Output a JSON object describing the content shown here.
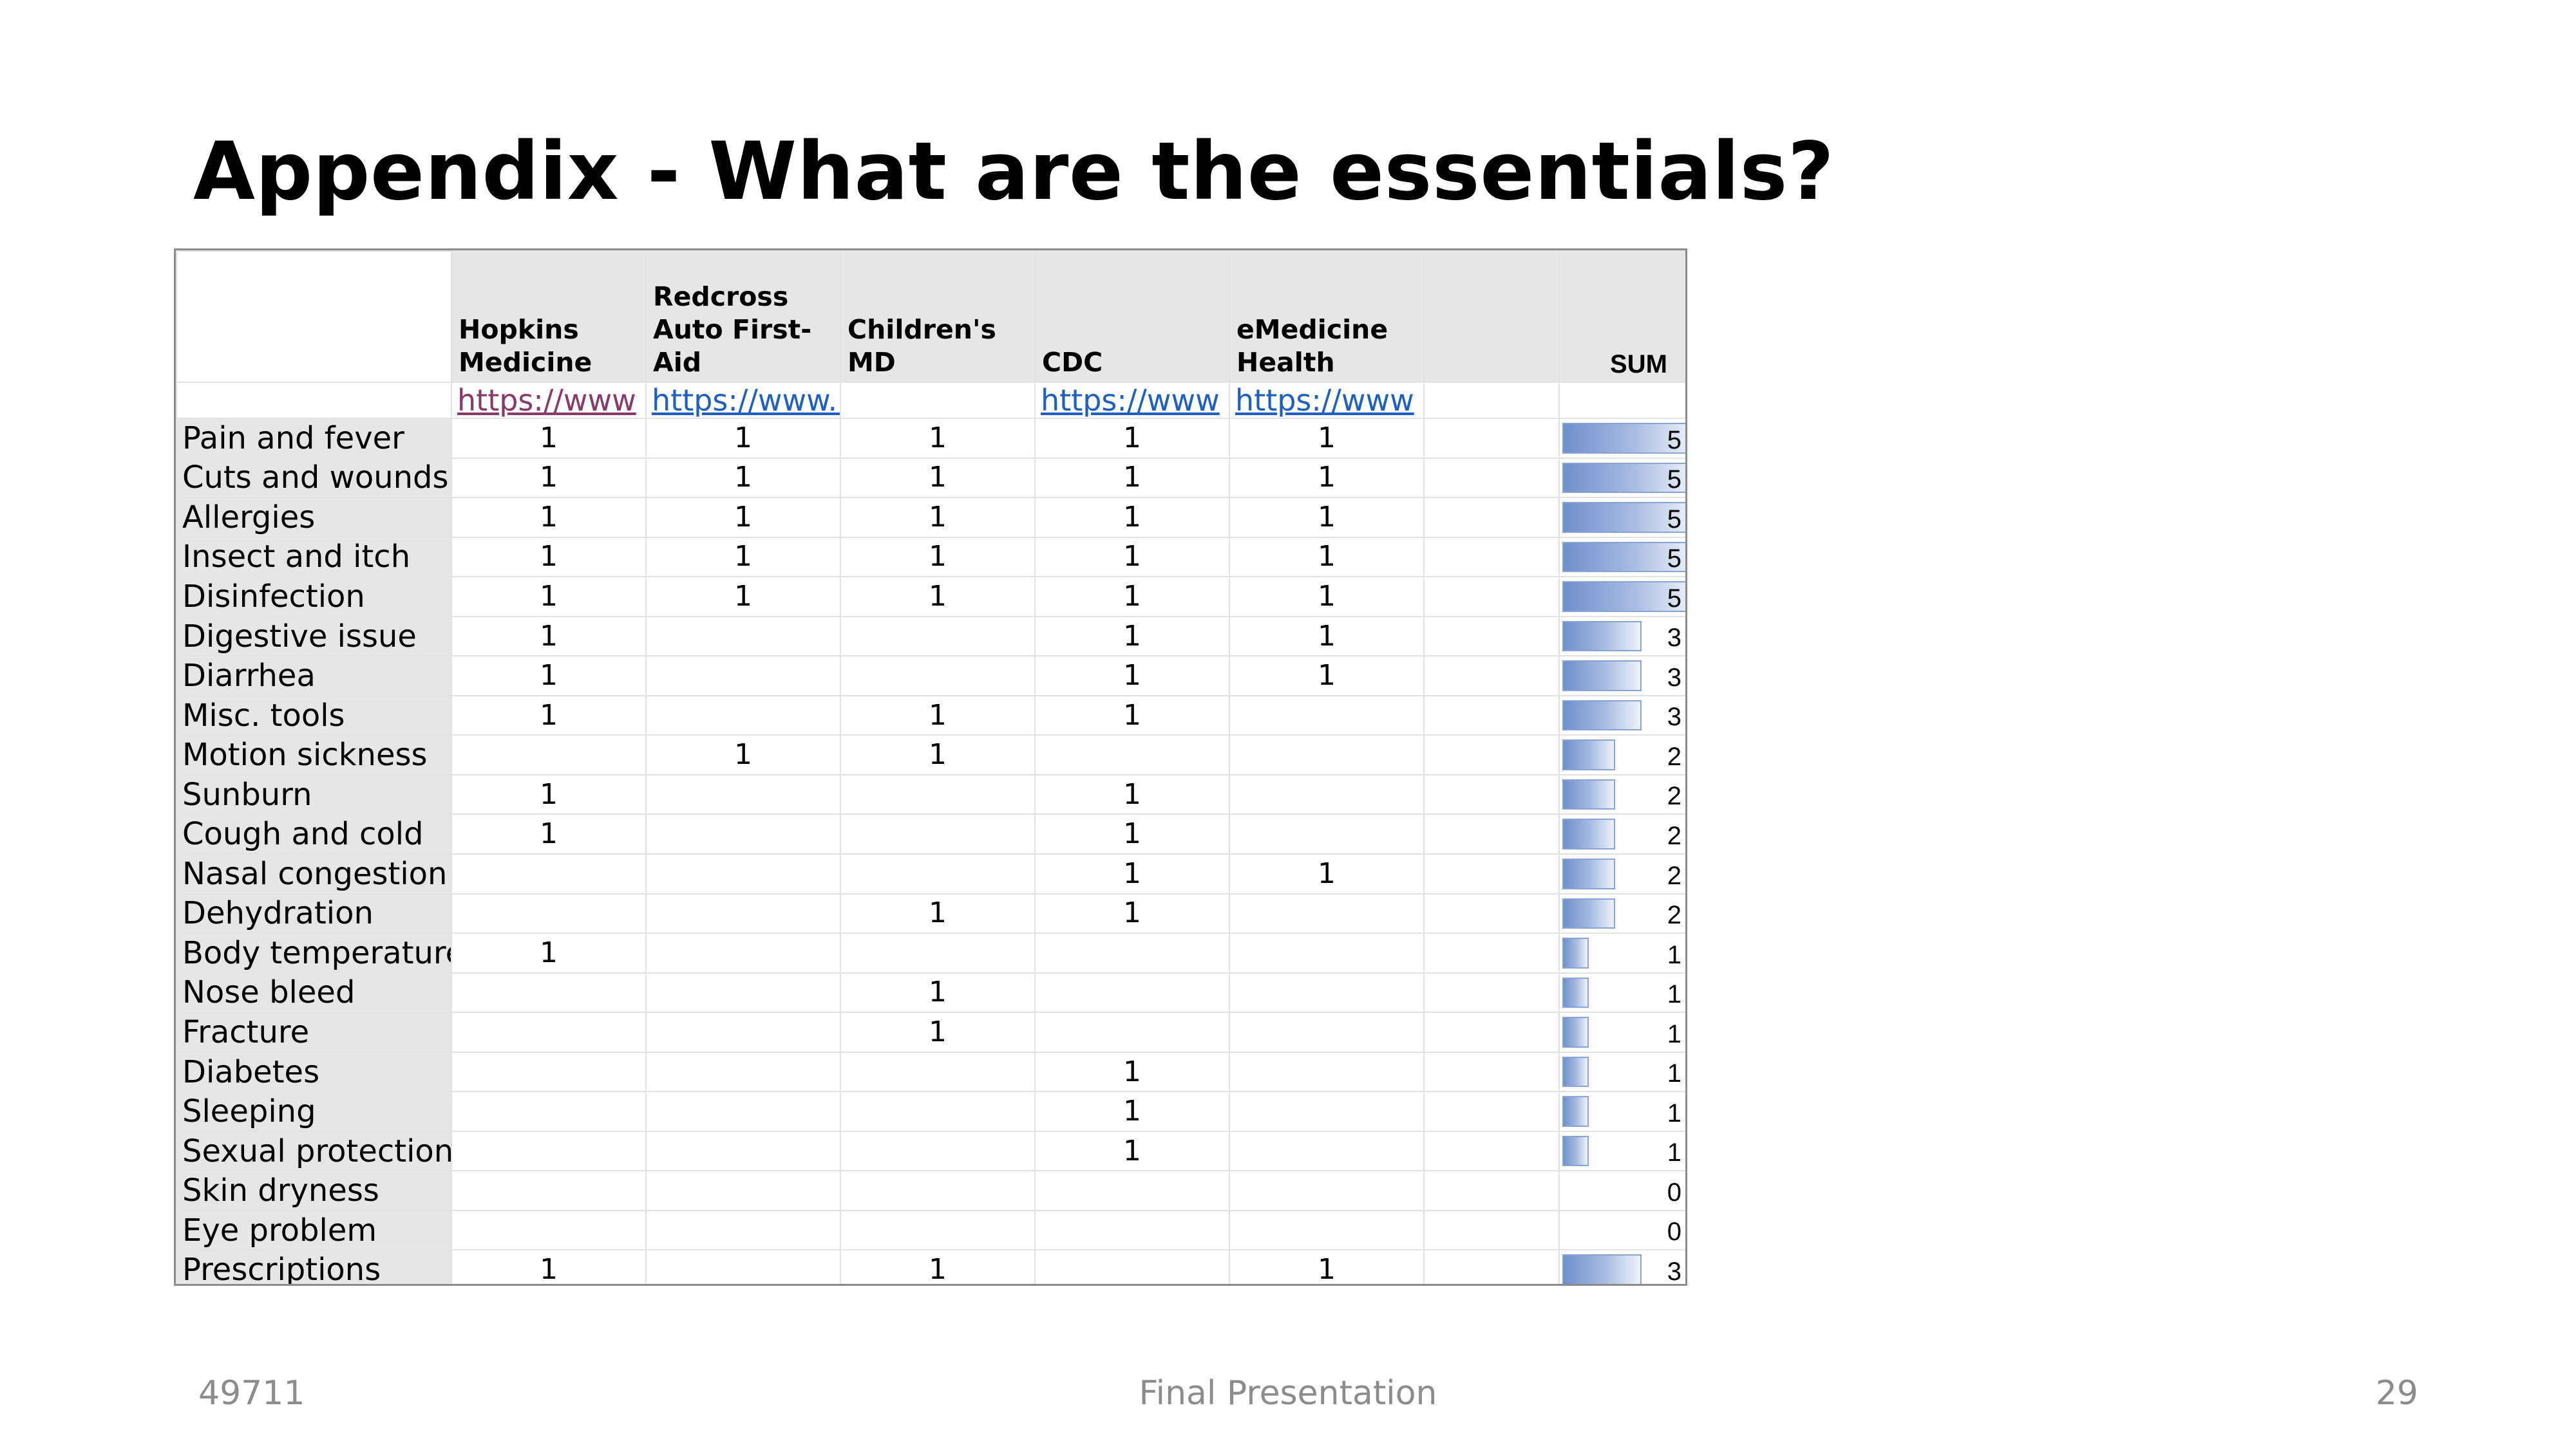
{
  "slide": {
    "title": "Appendix - What are the essentials?",
    "footer_left": "49711",
    "footer_center": "Final Presentation",
    "footer_right": "29"
  },
  "table": {
    "sources": [
      {
        "name": "Hopkins Medicine",
        "link": "https://www",
        "visited": true
      },
      {
        "name": "Redcross Auto First-Aid",
        "link": "https://www.redcross.org",
        "visited": false
      },
      {
        "name": "Children's MD",
        "link": "",
        "visited": false
      },
      {
        "name": "CDC",
        "link": "https://www",
        "visited": false
      },
      {
        "name": "eMedicine Health",
        "link": "https://www",
        "visited": false
      },
      {
        "name": "",
        "link": "",
        "visited": false
      }
    ],
    "sum_header": "SUM",
    "max_sum": 5,
    "rows": [
      {
        "label": "Pain and fever",
        "values": [
          "1",
          "1",
          "1",
          "1",
          "1",
          ""
        ],
        "sum": 5
      },
      {
        "label": "Cuts and wounds",
        "values": [
          "1",
          "1",
          "1",
          "1",
          "1",
          ""
        ],
        "sum": 5
      },
      {
        "label": "Allergies",
        "values": [
          "1",
          "1",
          "1",
          "1",
          "1",
          ""
        ],
        "sum": 5
      },
      {
        "label": "Insect and itch",
        "values": [
          "1",
          "1",
          "1",
          "1",
          "1",
          ""
        ],
        "sum": 5
      },
      {
        "label": "Disinfection",
        "values": [
          "1",
          "1",
          "1",
          "1",
          "1",
          ""
        ],
        "sum": 5
      },
      {
        "label": "Digestive issue",
        "values": [
          "1",
          "",
          "",
          "1",
          "1",
          ""
        ],
        "sum": 3
      },
      {
        "label": "Diarrhea",
        "values": [
          "1",
          "",
          "",
          "1",
          "1",
          ""
        ],
        "sum": 3
      },
      {
        "label": "Misc. tools",
        "values": [
          "1",
          "",
          "1",
          "1",
          "",
          ""
        ],
        "sum": 3
      },
      {
        "label": "Motion sickness",
        "values": [
          "",
          "1",
          "1",
          "",
          "",
          ""
        ],
        "sum": 2
      },
      {
        "label": "Sunburn",
        "values": [
          "1",
          "",
          "",
          "1",
          "",
          ""
        ],
        "sum": 2
      },
      {
        "label": "Cough and cold",
        "values": [
          "1",
          "",
          "",
          "1",
          "",
          ""
        ],
        "sum": 2
      },
      {
        "label": "Nasal congestion",
        "values": [
          "",
          "",
          "",
          "1",
          "1",
          ""
        ],
        "sum": 2
      },
      {
        "label": "Dehydration",
        "values": [
          "",
          "",
          "1",
          "1",
          "",
          ""
        ],
        "sum": 2
      },
      {
        "label": "Body temperature",
        "values": [
          "1",
          "",
          "",
          "",
          "",
          ""
        ],
        "sum": 1
      },
      {
        "label": "Nose bleed",
        "values": [
          "",
          "",
          "1",
          "",
          "",
          ""
        ],
        "sum": 1
      },
      {
        "label": "Fracture",
        "values": [
          "",
          "",
          "1",
          "",
          "",
          ""
        ],
        "sum": 1
      },
      {
        "label": "Diabetes",
        "values": [
          "",
          "",
          "",
          "1",
          "",
          ""
        ],
        "sum": 1
      },
      {
        "label": "Sleeping",
        "values": [
          "",
          "",
          "",
          "1",
          "",
          ""
        ],
        "sum": 1
      },
      {
        "label": "Sexual protection",
        "values": [
          "",
          "",
          "",
          "1",
          "",
          ""
        ],
        "sum": 1
      },
      {
        "label": "Skin dryness",
        "values": [
          "",
          "",
          "",
          "",
          "",
          ""
        ],
        "sum": 0
      },
      {
        "label": "Eye problem",
        "values": [
          "",
          "",
          "",
          "",
          "",
          ""
        ],
        "sum": 0
      },
      {
        "label": "Prescriptions",
        "values": [
          "1",
          "",
          "1",
          "",
          "1",
          ""
        ],
        "sum": 3
      }
    ]
  }
}
